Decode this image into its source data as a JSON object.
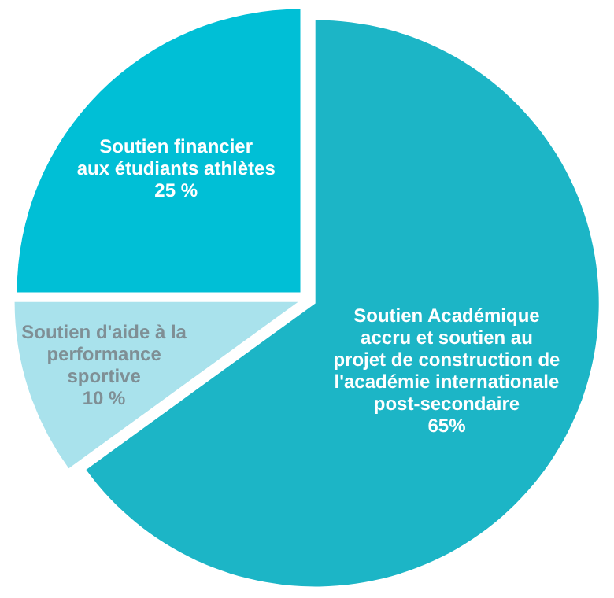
{
  "chart_data": {
    "type": "pie",
    "categories": [
      "Soutien Académique\naccru et soutien au\nprojet de construction de\nl'académie internationale\npost-secondaire",
      "Soutien d'aide à la\nperformance\nsportive",
      "Soutien financier\naux étudiants athlètes"
    ],
    "values": [
      65,
      10,
      25
    ],
    "colors": [
      "#1cb5c6",
      "#a9e2ec",
      "#00bfd6"
    ],
    "value_labels": [
      "65%",
      "10 %",
      "25 %"
    ]
  }
}
